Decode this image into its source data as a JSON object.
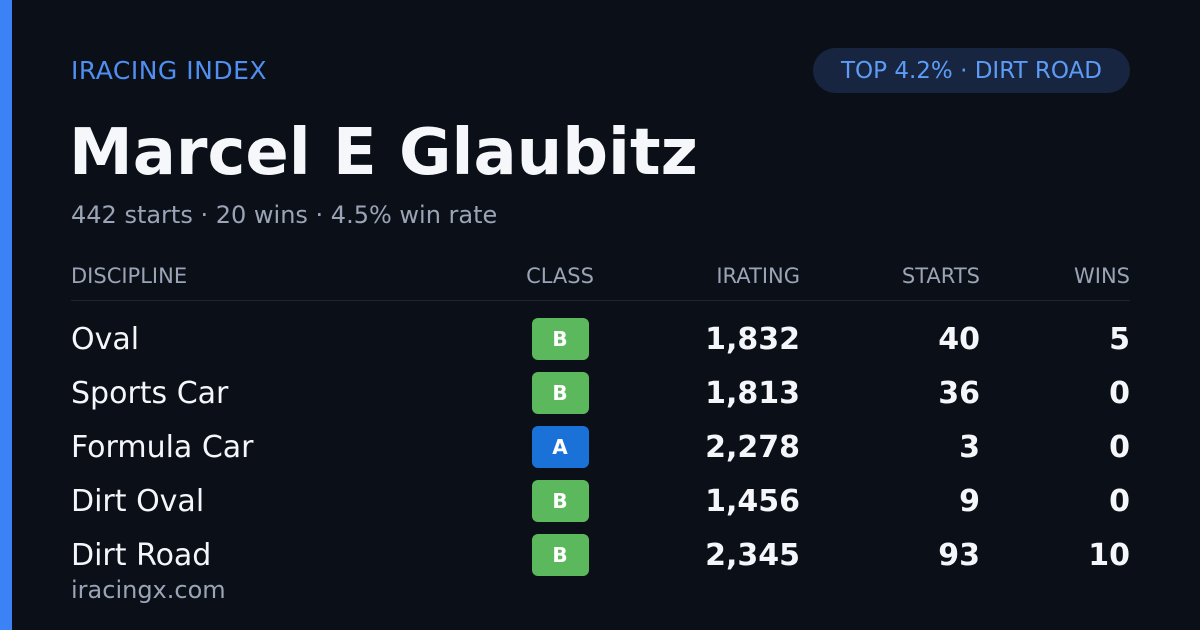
{
  "header": {
    "brand": "IRACING INDEX",
    "badge": "TOP 4.2% · DIRT ROAD"
  },
  "driver": {
    "name": "Marcel E Glaubitz",
    "summary": "442 starts · 20 wins · 4.5% win rate"
  },
  "table": {
    "columns": [
      "DISCIPLINE",
      "CLASS",
      "IRATING",
      "STARTS",
      "WINS"
    ],
    "rows": [
      [
        "Oval",
        "B",
        "1,832",
        "40",
        "5"
      ],
      [
        "Sports Car",
        "B",
        "1,813",
        "36",
        "0"
      ],
      [
        "Formula Car",
        "A",
        "2,278",
        "3",
        "0"
      ],
      [
        "Dirt Oval",
        "B",
        "1,456",
        "9",
        "0"
      ],
      [
        "Dirt Road",
        "B",
        "2,345",
        "93",
        "10"
      ]
    ]
  },
  "footer": {
    "site": "iracingx.com"
  }
}
